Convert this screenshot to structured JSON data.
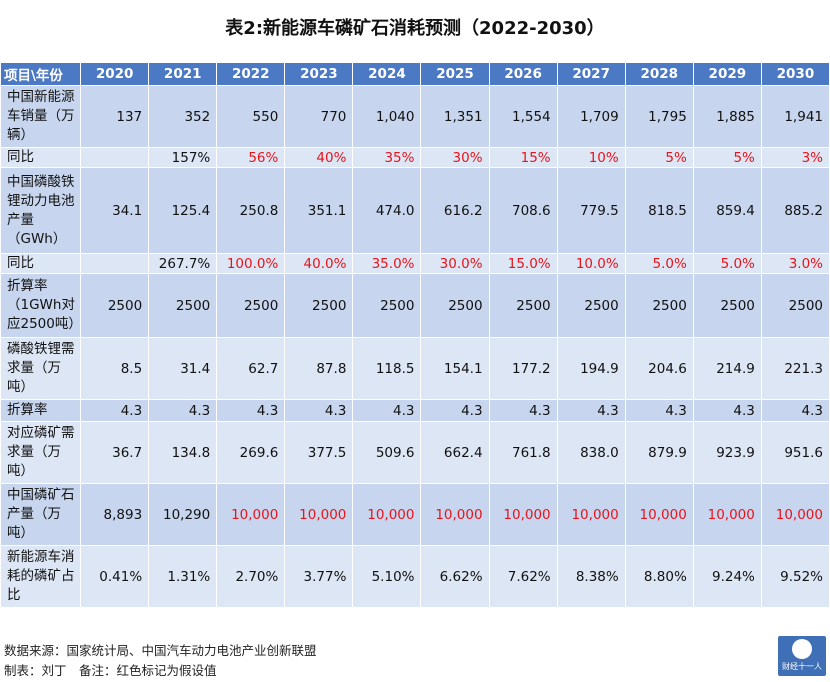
{
  "title": "表2:新能源车磷矿石消耗预测（2022-2030）",
  "header": [
    "项目\\年份",
    "2020",
    "2021",
    "2022",
    "2023",
    "2024",
    "2025",
    "2026",
    "2027",
    "2028",
    "2029",
    "2030"
  ],
  "rows": [
    {
      "label": "中国新能源车销量（万辆）",
      "values": [
        "137",
        "352",
        "550",
        "770",
        "1,040",
        "1,351",
        "1,554",
        "1,709",
        "1,795",
        "1,885",
        "1,941"
      ],
      "red_from": -1,
      "alt": false
    },
    {
      "label": "同比",
      "values": [
        "",
        "157%",
        "56%",
        "40%",
        "35%",
        "30%",
        "15%",
        "10%",
        "5%",
        "5%",
        "3%"
      ],
      "red_from": 2,
      "alt": true
    },
    {
      "label": "中国磷酸铁锂动力电池产量（GWh）",
      "values": [
        "34.1",
        "125.4",
        "250.8",
        "351.1",
        "474.0",
        "616.2",
        "708.6",
        "779.5",
        "818.5",
        "859.4",
        "885.2"
      ],
      "red_from": -1,
      "alt": false
    },
    {
      "label": "同比",
      "values": [
        "",
        "267.7%",
        "100.0%",
        "40.0%",
        "35.0%",
        "30.0%",
        "15.0%",
        "10.0%",
        "5.0%",
        "5.0%",
        "3.0%"
      ],
      "red_from": 2,
      "alt": true
    },
    {
      "label": "折算率（1GWh对应2500吨）",
      "values": [
        "2500",
        "2500",
        "2500",
        "2500",
        "2500",
        "2500",
        "2500",
        "2500",
        "2500",
        "2500",
        "2500"
      ],
      "red_from": -1,
      "alt": false
    },
    {
      "label": "磷酸铁锂需求量（万吨）",
      "values": [
        "8.5",
        "31.4",
        "62.7",
        "87.8",
        "118.5",
        "154.1",
        "177.2",
        "194.9",
        "204.6",
        "214.9",
        "221.3"
      ],
      "red_from": -1,
      "alt": true
    },
    {
      "label": "折算率",
      "values": [
        "4.3",
        "4.3",
        "4.3",
        "4.3",
        "4.3",
        "4.3",
        "4.3",
        "4.3",
        "4.3",
        "4.3",
        "4.3"
      ],
      "red_from": -1,
      "alt": false
    },
    {
      "label": "对应磷矿需求量（万吨）",
      "values": [
        "36.7",
        "134.8",
        "269.6",
        "377.5",
        "509.6",
        "662.4",
        "761.8",
        "838.0",
        "879.9",
        "923.9",
        "951.6"
      ],
      "red_from": -1,
      "alt": true
    },
    {
      "label": "中国磷矿石产量（万吨）",
      "values": [
        "8,893",
        "10,290",
        "10,000",
        "10,000",
        "10,000",
        "10,000",
        "10,000",
        "10,000",
        "10,000",
        "10,000",
        "10,000"
      ],
      "red_from": 2,
      "alt": false
    },
    {
      "label": "新能源车消耗的磷矿占比",
      "values": [
        "0.41%",
        "1.31%",
        "2.70%",
        "3.77%",
        "5.10%",
        "6.62%",
        "7.62%",
        "8.38%",
        "8.80%",
        "9.24%",
        "9.52%"
      ],
      "red_from": -1,
      "alt": true
    }
  ],
  "footer": {
    "source": "数据来源：国家统计局、中国汽车动力电池产业创新联盟",
    "maker": "制表：刘丁　备注：红色标记为假设值"
  },
  "logo": {
    "text": "财经十一人"
  },
  "colors": {
    "header_bg": "#4b79c4",
    "row_bg": "#c7d6ee",
    "row_alt_bg": "#dde6f5",
    "assumed_value": "#e8141b"
  }
}
